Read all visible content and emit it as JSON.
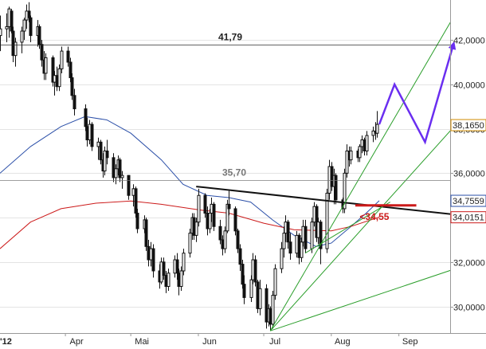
{
  "chart_data": {
    "type": "candlestick",
    "y_axis": {
      "side": "right",
      "range": [
        28.8,
        43.8
      ],
      "ticks": [
        "30,0000",
        "32,0000",
        "34,0000",
        "36,0000",
        "38,0000",
        "40,0000",
        "42,0000"
      ],
      "tick_values": [
        30,
        32,
        34,
        36,
        38,
        40,
        42
      ]
    },
    "x_axis": {
      "first_label": "'12",
      "labels": [
        "Apr",
        "Mai",
        "Jun",
        "Jul",
        "Aug",
        "Sep"
      ],
      "label_dates": [
        "2012-04-01",
        "2012-05-01",
        "2012-06-01",
        "2012-07-01",
        "2012-08-01",
        "2012-09-01"
      ],
      "range": [
        "2012-03-02",
        "2012-09-30"
      ]
    },
    "grid": "horizontal",
    "price_tags": [
      {
        "label": "38,1650",
        "value": 38.165,
        "color": "#d08a00"
      },
      {
        "label": "34,7559",
        "value": 34.7559,
        "color": "#2b4fa8"
      },
      {
        "label": "34,0151",
        "value": 34.0151,
        "color": "#cc1a1a"
      }
    ],
    "levels": [
      {
        "label": "41,79",
        "value": 41.79,
        "color": "#222222"
      },
      {
        "label": "35,70",
        "value": 35.7,
        "color": "#777777"
      }
    ],
    "annotation": {
      "label": "<34,55",
      "value": 34.55,
      "color": "#cc1a1a"
    },
    "ohlc": [
      [
        "2012-03-02",
        42.2,
        43.1,
        41.5,
        42.5
      ],
      [
        "2012-03-05",
        42.5,
        43.2,
        41.9,
        42.6
      ],
      [
        "2012-03-06",
        42.6,
        43.5,
        42.1,
        43.4
      ],
      [
        "2012-03-07",
        43.3,
        43.4,
        42.3,
        42.4
      ],
      [
        "2012-03-08",
        42.4,
        42.6,
        41.0,
        41.3
      ],
      [
        "2012-03-09",
        41.3,
        42.1,
        40.8,
        41.9
      ],
      [
        "2012-03-12",
        41.9,
        42.6,
        41.4,
        42.4
      ],
      [
        "2012-03-13",
        42.4,
        43.0,
        42.0,
        42.9
      ],
      [
        "2012-03-14",
        42.9,
        43.6,
        42.5,
        43.3
      ],
      [
        "2012-03-15",
        43.3,
        43.7,
        42.8,
        43.0
      ],
      [
        "2012-03-16",
        43.0,
        43.1,
        41.9,
        42.2
      ],
      [
        "2012-03-19",
        42.2,
        42.9,
        41.7,
        42.6
      ],
      [
        "2012-03-20",
        42.6,
        42.7,
        41.6,
        41.8
      ],
      [
        "2012-03-21",
        41.8,
        42.0,
        40.8,
        41.1
      ],
      [
        "2012-03-22",
        41.1,
        41.5,
        40.2,
        40.5
      ],
      [
        "2012-03-23",
        40.5,
        41.4,
        40.2,
        41.2
      ],
      [
        "2012-03-26",
        41.2,
        41.3,
        39.9,
        40.1
      ],
      [
        "2012-03-27",
        40.1,
        40.6,
        39.5,
        40.4
      ],
      [
        "2012-03-28",
        40.4,
        40.8,
        39.7,
        39.9
      ],
      [
        "2012-03-29",
        39.9,
        40.9,
        39.7,
        40.7
      ],
      [
        "2012-03-30",
        40.7,
        41.7,
        40.5,
        41.5
      ],
      [
        "2012-04-02",
        41.5,
        41.7,
        40.8,
        41.0
      ],
      [
        "2012-04-03",
        41.0,
        41.2,
        40.1,
        40.3
      ],
      [
        "2012-04-04",
        40.3,
        40.5,
        39.3,
        39.5
      ],
      [
        "2012-04-05",
        39.5,
        39.8,
        38.6,
        38.9
      ],
      [
        "2012-04-10",
        38.9,
        39.1,
        37.9,
        38.1
      ],
      [
        "2012-04-11",
        38.1,
        38.5,
        37.2,
        37.5
      ],
      [
        "2012-04-12",
        37.5,
        38.4,
        37.3,
        38.2
      ],
      [
        "2012-04-13",
        38.2,
        38.3,
        37.0,
        37.2
      ],
      [
        "2012-04-16",
        37.2,
        37.6,
        36.6,
        37.4
      ],
      [
        "2012-04-17",
        37.4,
        37.5,
        36.4,
        36.6
      ],
      [
        "2012-04-18",
        36.6,
        36.9,
        35.8,
        36.1
      ],
      [
        "2012-04-19",
        36.1,
        37.2,
        35.9,
        37.0
      ],
      [
        "2012-04-20",
        37.0,
        37.5,
        36.4,
        36.7
      ],
      [
        "2012-04-23",
        36.7,
        36.9,
        35.6,
        35.8
      ],
      [
        "2012-04-24",
        35.8,
        36.4,
        35.5,
        36.2
      ],
      [
        "2012-04-25",
        36.2,
        36.8,
        35.9,
        36.6
      ],
      [
        "2012-04-26",
        36.6,
        36.7,
        35.6,
        35.8
      ],
      [
        "2012-04-27",
        35.8,
        36.1,
        35.3,
        35.9
      ],
      [
        "2012-04-30",
        35.9,
        35.9,
        34.8,
        35.0
      ],
      [
        "2012-05-02",
        35.0,
        35.5,
        34.5,
        35.3
      ],
      [
        "2012-05-03",
        35.3,
        35.4,
        34.0,
        34.2
      ],
      [
        "2012-05-04",
        34.2,
        34.4,
        33.3,
        33.5
      ],
      [
        "2012-05-07",
        33.5,
        34.1,
        33.3,
        33.9
      ],
      [
        "2012-05-08",
        33.9,
        34.0,
        32.5,
        32.7
      ],
      [
        "2012-05-09",
        32.7,
        33.0,
        31.8,
        32.1
      ],
      [
        "2012-05-10",
        32.1,
        32.9,
        31.8,
        32.6
      ],
      [
        "2012-05-11",
        32.6,
        32.8,
        31.3,
        31.6
      ],
      [
        "2012-05-14",
        31.6,
        31.9,
        30.8,
        31.1
      ],
      [
        "2012-05-15",
        31.1,
        32.2,
        31.0,
        32.0
      ],
      [
        "2012-05-16",
        32.0,
        32.2,
        31.2,
        31.4
      ],
      [
        "2012-05-17",
        31.4,
        31.6,
        30.6,
        30.9
      ],
      [
        "2012-05-18",
        30.9,
        31.7,
        30.7,
        31.5
      ],
      [
        "2012-05-21",
        31.5,
        32.3,
        31.3,
        32.1
      ],
      [
        "2012-05-22",
        32.1,
        32.4,
        31.2,
        31.5
      ],
      [
        "2012-05-23",
        31.5,
        31.7,
        30.5,
        30.9
      ],
      [
        "2012-05-24",
        30.9,
        31.8,
        30.7,
        31.6
      ],
      [
        "2012-05-25",
        31.6,
        32.6,
        31.4,
        32.4
      ],
      [
        "2012-05-28",
        32.4,
        33.5,
        32.2,
        33.3
      ],
      [
        "2012-05-29",
        33.3,
        34.2,
        33.0,
        34.0
      ],
      [
        "2012-05-30",
        34.0,
        34.2,
        33.0,
        33.2
      ],
      [
        "2012-05-31",
        33.2,
        34.0,
        32.9,
        33.8
      ],
      [
        "2012-06-01",
        33.8,
        35.3,
        33.6,
        35.0
      ],
      [
        "2012-06-04",
        35.0,
        35.1,
        34.0,
        34.2
      ],
      [
        "2012-06-05",
        34.2,
        34.5,
        33.2,
        33.5
      ],
      [
        "2012-06-06",
        33.5,
        34.4,
        33.3,
        34.2
      ],
      [
        "2012-06-07",
        34.2,
        34.9,
        33.8,
        34.6
      ],
      [
        "2012-06-08",
        34.6,
        34.7,
        33.4,
        33.6
      ],
      [
        "2012-06-11",
        33.6,
        33.9,
        32.8,
        33.0
      ],
      [
        "2012-06-12",
        33.0,
        33.2,
        32.3,
        32.6
      ],
      [
        "2012-06-13",
        32.6,
        33.6,
        32.4,
        33.4
      ],
      [
        "2012-06-14",
        33.4,
        34.8,
        33.3,
        34.6
      ],
      [
        "2012-06-15",
        34.6,
        35.2,
        34.1,
        34.4
      ],
      [
        "2012-06-18",
        34.4,
        34.5,
        33.2,
        33.4
      ],
      [
        "2012-06-19",
        33.4,
        33.5,
        32.4,
        32.6
      ],
      [
        "2012-06-20",
        32.6,
        32.8,
        31.6,
        31.9
      ],
      [
        "2012-06-21",
        31.9,
        32.1,
        30.8,
        31.0
      ],
      [
        "2012-06-22",
        31.0,
        31.4,
        30.1,
        30.4
      ],
      [
        "2012-06-25",
        30.4,
        31.4,
        30.2,
        31.2
      ],
      [
        "2012-06-26",
        31.2,
        32.4,
        31.0,
        32.1
      ],
      [
        "2012-06-27",
        32.1,
        32.3,
        30.9,
        31.1
      ],
      [
        "2012-06-28",
        31.1,
        31.2,
        29.7,
        29.9
      ],
      [
        "2012-06-29",
        29.9,
        31.2,
        29.6,
        30.8
      ],
      [
        "2012-07-02",
        30.8,
        31.0,
        29.0,
        29.3
      ],
      [
        "2012-07-03",
        29.3,
        30.1,
        29.1,
        29.9
      ],
      [
        "2012-07-04",
        29.9,
        30.0,
        28.9,
        29.2
      ],
      [
        "2012-07-05",
        29.2,
        30.7,
        29.0,
        30.5
      ],
      [
        "2012-07-06",
        30.5,
        31.9,
        30.3,
        31.7
      ],
      [
        "2012-07-09",
        31.7,
        32.9,
        31.5,
        32.6
      ],
      [
        "2012-07-10",
        32.6,
        33.6,
        32.2,
        33.3
      ],
      [
        "2012-07-11",
        33.3,
        34.1,
        32.9,
        33.8
      ],
      [
        "2012-07-12",
        33.8,
        33.9,
        32.6,
        32.9
      ],
      [
        "2012-07-13",
        32.9,
        33.3,
        32.1,
        32.4
      ],
      [
        "2012-07-16",
        32.4,
        33.4,
        32.2,
        33.2
      ],
      [
        "2012-07-17",
        33.2,
        33.3,
        31.9,
        32.2
      ],
      [
        "2012-07-18",
        32.2,
        33.1,
        32.0,
        32.9
      ],
      [
        "2012-07-19",
        32.9,
        33.9,
        32.7,
        33.6
      ],
      [
        "2012-07-20",
        33.6,
        33.9,
        32.4,
        32.6
      ],
      [
        "2012-07-23",
        32.6,
        34.0,
        32.4,
        33.8
      ],
      [
        "2012-07-24",
        33.8,
        34.7,
        33.6,
        34.5
      ],
      [
        "2012-07-25",
        34.5,
        34.6,
        32.9,
        33.1
      ],
      [
        "2012-07-26",
        33.1,
        34.0,
        32.8,
        33.8
      ],
      [
        "2012-07-27",
        33.8,
        33.9,
        31.9,
        32.6
      ],
      [
        "2012-07-30",
        32.6,
        35.3,
        32.4,
        35.1
      ],
      [
        "2012-07-31",
        35.1,
        36.6,
        34.8,
        36.3
      ],
      [
        "2012-08-01",
        36.3,
        36.5,
        35.2,
        35.4
      ],
      [
        "2012-08-02",
        35.4,
        36.2,
        34.6,
        35.9
      ],
      [
        "2012-08-03",
        35.9,
        36.0,
        34.6,
        34.8
      ],
      [
        "2012-08-06",
        34.8,
        34.9,
        34.2,
        34.4
      ],
      [
        "2012-08-07",
        34.4,
        36.2,
        34.2,
        36.0
      ],
      [
        "2012-08-08",
        36.0,
        37.3,
        35.8,
        37.0
      ],
      [
        "2012-08-09",
        37.0,
        37.2,
        36.3,
        36.6
      ],
      [
        "2012-08-10",
        36.6,
        37.2,
        36.4,
        37.0
      ],
      [
        "2012-08-13",
        37.0,
        37.1,
        36.5,
        36.7
      ],
      [
        "2012-08-14",
        36.7,
        37.3,
        36.5,
        37.2
      ],
      [
        "2012-08-15",
        37.2,
        37.7,
        36.9,
        37.5
      ],
      [
        "2012-08-16",
        37.5,
        37.6,
        36.8,
        37.0
      ],
      [
        "2012-08-17",
        37.0,
        37.9,
        36.8,
        37.7
      ],
      [
        "2012-08-20",
        37.7,
        38.1,
        37.4,
        37.9
      ],
      [
        "2012-08-21",
        37.9,
        38.3,
        37.5,
        37.8
      ],
      [
        "2012-08-22",
        37.8,
        38.8,
        37.6,
        38.2
      ]
    ],
    "moving_averages": [
      {
        "color": "#2b4fa8",
        "points": [
          [
            "2012-03-02",
            36.0
          ],
          [
            "2012-03-16",
            37.2
          ],
          [
            "2012-03-30",
            38.1
          ],
          [
            "2012-04-10",
            38.55
          ],
          [
            "2012-04-20",
            38.4
          ],
          [
            "2012-05-01",
            37.8
          ],
          [
            "2012-05-15",
            36.6
          ],
          [
            "2012-05-25",
            35.5
          ],
          [
            "2012-06-05",
            35.0
          ],
          [
            "2012-06-15",
            34.9
          ],
          [
            "2012-06-25",
            34.7
          ],
          [
            "2012-07-05",
            33.9
          ],
          [
            "2012-07-15",
            33.2
          ],
          [
            "2012-07-25",
            32.7
          ],
          [
            "2012-08-01",
            32.85
          ],
          [
            "2012-08-10",
            33.6
          ],
          [
            "2012-08-17",
            34.2
          ],
          [
            "2012-08-23",
            34.76
          ]
        ]
      },
      {
        "color": "#cc1a1a",
        "points": [
          [
            "2012-03-02",
            32.6
          ],
          [
            "2012-03-16",
            33.8
          ],
          [
            "2012-03-30",
            34.4
          ],
          [
            "2012-04-15",
            34.65
          ],
          [
            "2012-05-01",
            34.75
          ],
          [
            "2012-05-15",
            34.6
          ],
          [
            "2012-06-01",
            34.35
          ],
          [
            "2012-06-15",
            34.2
          ],
          [
            "2012-07-01",
            33.75
          ],
          [
            "2012-07-15",
            33.45
          ],
          [
            "2012-08-01",
            33.4
          ],
          [
            "2012-08-10",
            33.6
          ],
          [
            "2012-08-23",
            34.02
          ]
        ]
      }
    ],
    "trendlines": [
      {
        "color": "#111111",
        "from": [
          "2012-05-31",
          35.4
        ],
        "to": [
          "2012-09-30",
          34.1
        ]
      },
      {
        "color": "#2a9e2a",
        "from": [
          "2012-07-04",
          28.9
        ],
        "to": [
          "2012-09-30",
          43.7
        ]
      },
      {
        "color": "#2a9e2a",
        "from": [
          "2012-07-04",
          28.9
        ],
        "to": [
          "2012-09-30",
          38.5
        ]
      },
      {
        "color": "#2a9e2a",
        "from": [
          "2012-07-04",
          28.9
        ],
        "to": [
          "2012-09-30",
          31.8
        ]
      },
      {
        "color": "#2a9e2a",
        "from": [
          "2012-07-20",
          32.4
        ],
        "to": [
          "2012-08-28",
          34.7
        ]
      }
    ],
    "projection": {
      "color": "#6a2ef0",
      "points": [
        [
          "2012-08-23",
          38.2
        ],
        [
          "2012-08-30",
          40.0
        ],
        [
          "2012-09-13",
          37.4
        ],
        [
          "2012-09-26",
          41.8
        ]
      ]
    }
  }
}
